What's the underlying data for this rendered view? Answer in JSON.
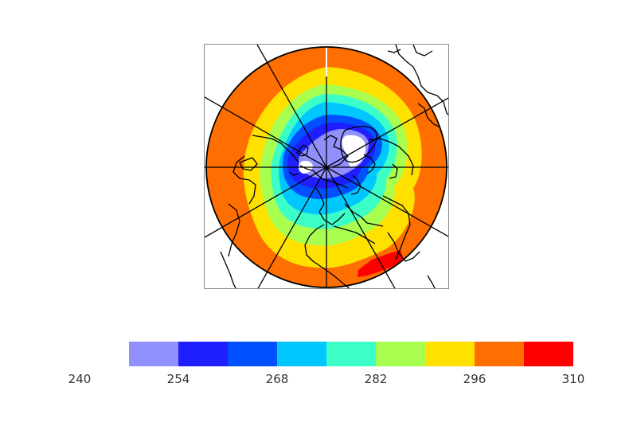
{
  "map": {
    "projection": "north-polar-stereographic",
    "field": "gridded temperature (K)",
    "gridlines": "meridians every 30 deg",
    "coastlines": true
  },
  "colorbar": {
    "colors": [
      "#9090ff",
      "#1e1eff",
      "#0050ff",
      "#00c8ff",
      "#3cffc8",
      "#a8ff50",
      "#ffe100",
      "#ff6e00",
      "#ff0000"
    ],
    "levels": [
      240,
      254,
      268,
      282,
      296,
      310
    ],
    "tick_labels": [
      "240",
      "254",
      "268",
      "282",
      "296",
      "310"
    ]
  },
  "chart_data": {
    "type": "heatmap",
    "colorbar_min": 240,
    "colorbar_max": 310,
    "colorbar_bins": [
      {
        "color": "#9090ff"
      },
      {
        "color": "#1e1eff"
      },
      {
        "color": "#0050ff"
      },
      {
        "color": "#00c8ff"
      },
      {
        "color": "#3cffc8"
      },
      {
        "color": "#a8ff50"
      },
      {
        "color": "#ffe100"
      },
      {
        "color": "#ff6e00"
      },
      {
        "color": "#ff0000"
      }
    ]
  }
}
